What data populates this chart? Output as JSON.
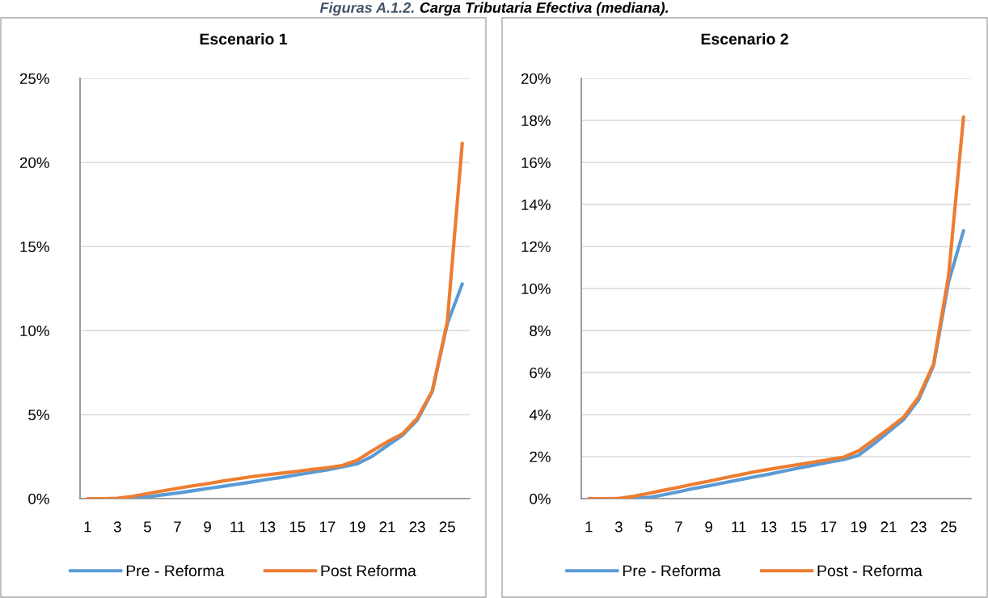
{
  "chart_data": [
    {
      "type": "line",
      "title": "Escenario 1",
      "annotations": [
        "Figuras A.1.2.",
        "Carga Tributaria Efectiva (mediana)."
      ],
      "categories": [
        "1",
        null,
        "3",
        null,
        "5",
        null,
        "7",
        null,
        "9",
        null,
        "11",
        null,
        "13",
        null,
        "15",
        null,
        "17",
        null,
        "19",
        null,
        "21",
        null,
        "23",
        null,
        "25",
        null
      ],
      "series": [
        {
          "name": "Pre - Reforma",
          "color": "#5b9bd5",
          "values": [
            null,
            null,
            0,
            0.02,
            0.1,
            0.22,
            0.33,
            0.46,
            0.6,
            0.73,
            0.86,
            0.99,
            1.14,
            1.27,
            1.42,
            1.56,
            1.71,
            1.89,
            2.07,
            2.52,
            3.15,
            3.76,
            4.67,
            6.37,
            10.4,
            12.77
          ]
        },
        {
          "name": "Post Reforma",
          "color": "#ed7d31",
          "values": [
            0,
            0,
            0.02,
            0.13,
            0.3,
            0.46,
            0.61,
            0.76,
            0.89,
            1.04,
            1.18,
            1.31,
            1.42,
            1.52,
            1.62,
            1.74,
            1.84,
            1.97,
            2.28,
            2.85,
            3.38,
            3.84,
            4.78,
            6.41,
            10.5,
            21.14
          ]
        }
      ],
      "ylim": [
        0,
        25
      ],
      "yticks": [
        {
          "value": 0,
          "label": "0%"
        },
        {
          "value": 5,
          "label": "5%"
        },
        {
          "value": 10,
          "label": "10%"
        },
        {
          "value": 15,
          "label": "15%"
        },
        {
          "value": 20,
          "label": "20%"
        },
        {
          "value": 25,
          "label": "25%"
        }
      ],
      "grid": "y",
      "legend": "bottom",
      "line_style": "solid"
    },
    {
      "type": "line",
      "title": "Escenario 2",
      "categories": [
        "1",
        null,
        "3",
        null,
        "5",
        null,
        "7",
        null,
        "9",
        null,
        "11",
        null,
        "13",
        null,
        "15",
        null,
        "17",
        null,
        "19",
        null,
        "21",
        null,
        "23",
        null,
        "25",
        null
      ],
      "series": [
        {
          "name": "Pre - Reforma",
          "color": "#5b9bd5",
          "values": [
            null,
            null,
            0,
            0.01,
            0.05,
            0.18,
            0.33,
            0.48,
            0.61,
            0.75,
            0.89,
            1.03,
            1.16,
            1.31,
            1.45,
            1.59,
            1.73,
            1.86,
            2.06,
            2.59,
            3.18,
            3.76,
            4.7,
            6.33,
            10.3,
            12.75
          ]
        },
        {
          "name": "Post - Reforma",
          "color": "#ed7d31",
          "values": [
            0,
            0,
            0.01,
            0.11,
            0.25,
            0.4,
            0.54,
            0.69,
            0.83,
            0.98,
            1.12,
            1.27,
            1.39,
            1.51,
            1.62,
            1.74,
            1.85,
            1.97,
            2.27,
            2.79,
            3.32,
            3.87,
            4.83,
            6.4,
            10.6,
            18.17
          ]
        }
      ],
      "ylim": [
        0,
        20
      ],
      "yticks": [
        {
          "value": 0,
          "label": "0%"
        },
        {
          "value": 2,
          "label": "2%"
        },
        {
          "value": 4,
          "label": "4%"
        },
        {
          "value": 6,
          "label": "6%"
        },
        {
          "value": 8,
          "label": "8%"
        },
        {
          "value": 10,
          "label": "10%"
        },
        {
          "value": 12,
          "label": "12%"
        },
        {
          "value": 14,
          "label": "14%"
        },
        {
          "value": 16,
          "label": "16%"
        },
        {
          "value": 18,
          "label": "18%"
        },
        {
          "value": 20,
          "label": "20%"
        }
      ],
      "grid": "y",
      "legend": "bottom",
      "line_style": "solid"
    }
  ]
}
